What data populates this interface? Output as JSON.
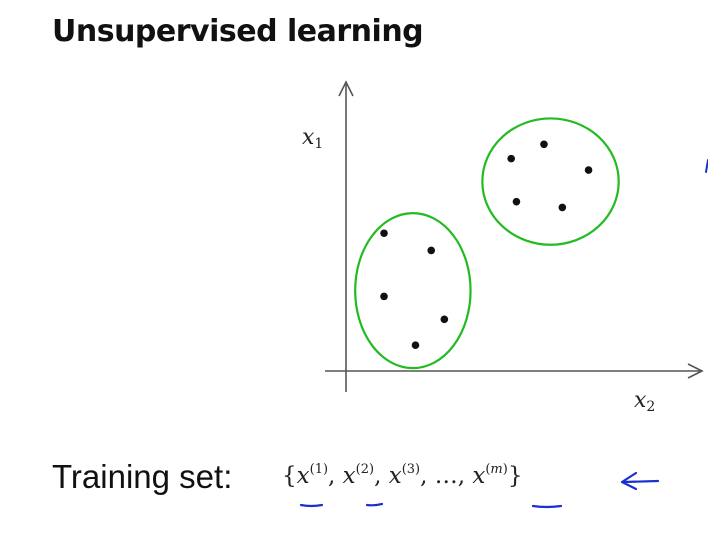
{
  "title": "Unsupervised learning",
  "axes": {
    "y_var": "x",
    "y_sub": "1",
    "x_var": "x",
    "x_sub": "2"
  },
  "training_set": {
    "label": "Training set:",
    "open_brace": "{",
    "var": "x",
    "sup1": "(1)",
    "sup2": "(2)",
    "sup3": "(3)",
    "sep": ",",
    "ellipsis": "…",
    "supm_open": "(",
    "supm_var": "m",
    "supm_close": ")",
    "close_brace": "}"
  },
  "colors": {
    "cluster_outline": "#22bb22",
    "annotation": "#1a2fd0",
    "axis": "#555555",
    "points": "#111111"
  },
  "chart_data": {
    "type": "scatter",
    "xlabel": "x2",
    "ylabel": "x1",
    "points": [
      {
        "x": 2.9,
        "y": 4.8,
        "group": "lower-left"
      },
      {
        "x": 6.5,
        "y": 4.2,
        "group": "lower-left"
      },
      {
        "x": 2.9,
        "y": 2.6,
        "group": "lower-left"
      },
      {
        "x": 7.5,
        "y": 1.8,
        "group": "lower-left"
      },
      {
        "x": 5.3,
        "y": 0.9,
        "group": "lower-left"
      },
      {
        "x": 12.6,
        "y": 7.4,
        "group": "upper-right"
      },
      {
        "x": 15.1,
        "y": 7.9,
        "group": "upper-right"
      },
      {
        "x": 18.5,
        "y": 7.0,
        "group": "upper-right"
      },
      {
        "x": 13.0,
        "y": 5.9,
        "group": "upper-right"
      },
      {
        "x": 16.5,
        "y": 5.7,
        "group": "upper-right"
      }
    ],
    "clusters": [
      {
        "name": "lower-left",
        "cx": 5.1,
        "cy": 2.8,
        "rx": 4.4,
        "ry": 2.7
      },
      {
        "name": "upper-right",
        "cx": 15.6,
        "cy": 6.6,
        "rx": 5.2,
        "ry": 2.2
      }
    ],
    "xlim": [
      0,
      27
    ],
    "ylim": [
      0,
      10
    ],
    "grid": false
  }
}
